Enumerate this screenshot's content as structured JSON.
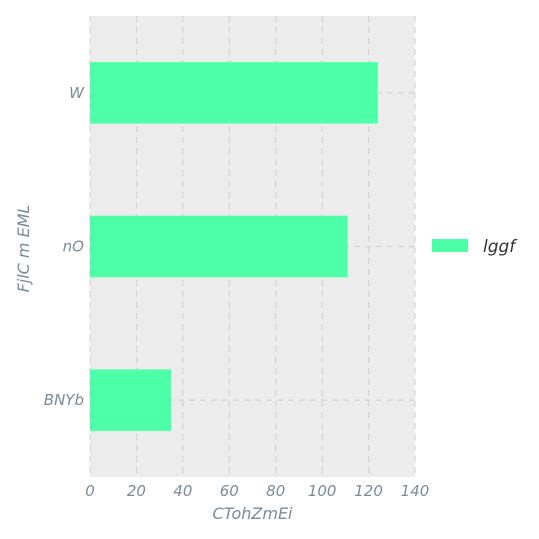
{
  "chart_data": {
    "type": "bar",
    "orientation": "horizontal",
    "categories": [
      "W",
      "nO",
      "BNYb"
    ],
    "series": [
      {
        "name": "lggf",
        "values": [
          124,
          111,
          35
        ]
      }
    ],
    "xlabel": "CTohZmEi",
    "ylabel": "FjlC  m EML",
    "xlim": [
      0,
      140
    ],
    "xticks": [
      "0",
      "20",
      "40",
      "60",
      "80",
      "100",
      "120",
      "140"
    ],
    "grid": true,
    "legend_position": "right",
    "colors": {
      "bar": "#4dffa6",
      "plot_background": "#ececec",
      "text": "#7a8b99",
      "grid": "#cfcfcf"
    }
  }
}
